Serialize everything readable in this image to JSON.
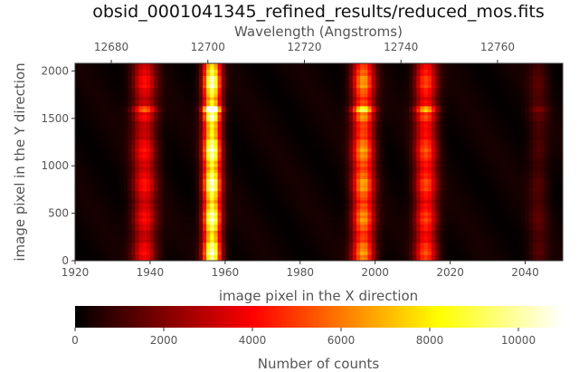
{
  "chart_data": {
    "type": "heatmap",
    "title": "obsid_0001041345_refined_results/reduced_mos.fits",
    "xlabel": "image pixel in the X direction",
    "ylabel": "image pixel in the Y direction",
    "x2label": "Wavelength (Angstroms)",
    "xlim": [
      1920,
      2050
    ],
    "ylim": [
      0,
      2080
    ],
    "x2lim": [
      12672.5,
      12773.5
    ],
    "xticks": [
      "1920",
      "1940",
      "1960",
      "1980",
      "2000",
      "2020",
      "2040"
    ],
    "yticks": [
      "0",
      "500",
      "1000",
      "1500",
      "2000"
    ],
    "x2ticks": [
      "12680",
      "12700",
      "12720",
      "12740",
      "12760"
    ],
    "colorbar": {
      "label": "Number of counts",
      "range": [
        0,
        11000
      ],
      "ticks": [
        "0",
        "2000",
        "4000",
        "6000",
        "8000",
        "10000"
      ],
      "colormap": "hot"
    },
    "emission_lines": [
      {
        "x": 1938.5,
        "width": 2.2,
        "peak": 4200
      },
      {
        "x": 1956.5,
        "width": 1.6,
        "peak": 11000
      },
      {
        "x": 1996.8,
        "width": 2.0,
        "peak": 6800
      },
      {
        "x": 2013.5,
        "width": 2.0,
        "peak": 5300
      },
      {
        "x": 2043.5,
        "width": 1.8,
        "peak": 1200
      }
    ],
    "background_counts": 350,
    "grid": false
  }
}
